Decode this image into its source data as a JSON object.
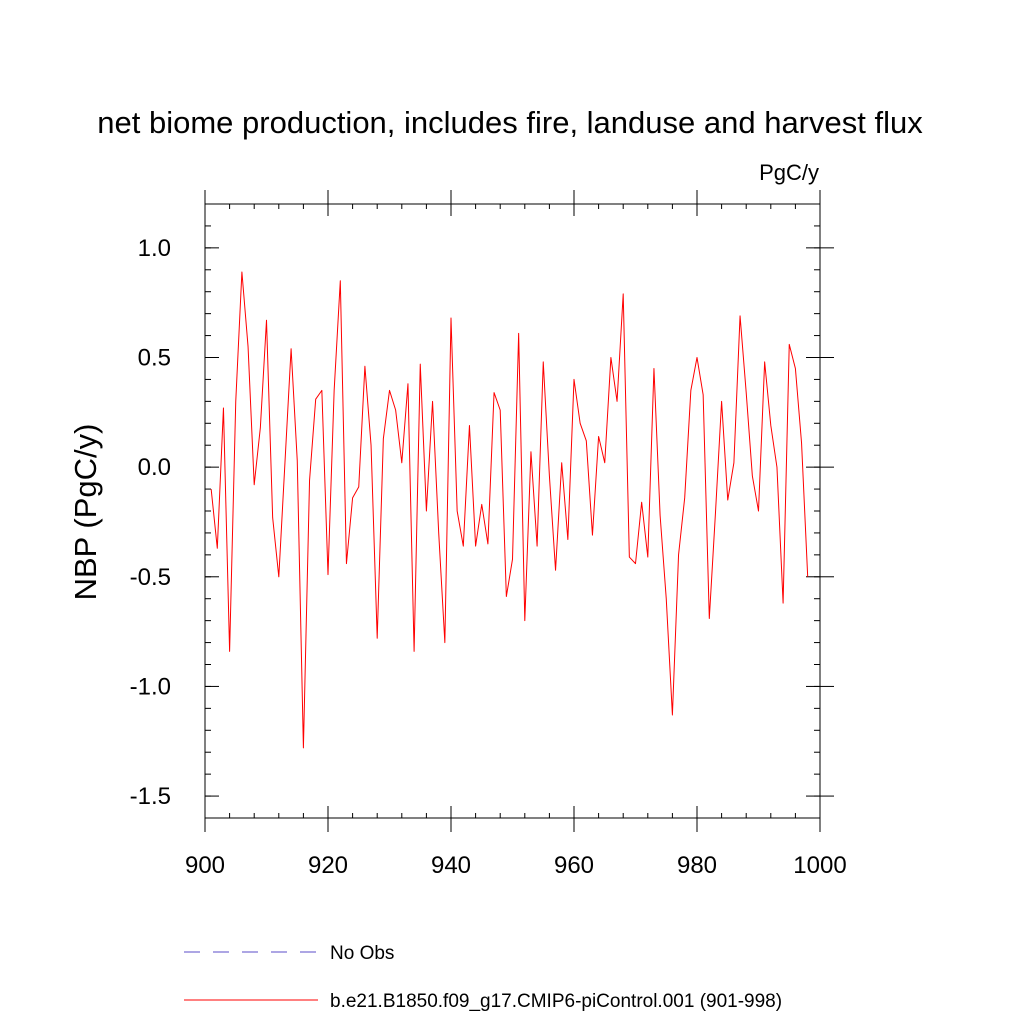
{
  "chart_data": {
    "type": "line",
    "title": "net biome production, includes fire, landuse and harvest flux",
    "units": "PgC/y",
    "ylabel": "NBP  (PgC/y)",
    "xlabel": "",
    "xlim": [
      900,
      1000
    ],
    "ylim": [
      -1.6,
      1.2
    ],
    "xticks": [
      900,
      920,
      940,
      960,
      980,
      1000
    ],
    "xtick_labels": [
      "900",
      "920",
      "940",
      "960",
      "980",
      "1000"
    ],
    "yticks": [
      -1.5,
      -1.0,
      -0.5,
      0.0,
      0.5,
      1.0
    ],
    "ytick_labels": [
      "-1.5",
      "-1.0",
      "-0.5",
      "0.0",
      "0.5",
      "1.0"
    ],
    "grid": false,
    "legend_position": "bottom",
    "legend": [
      {
        "label": "No Obs",
        "color": "#5b4ec8",
        "style": "dashed"
      },
      {
        "label": "b.e21.B1850.f09_g17.CMIP6-piControl.001 (901-998)",
        "color": "#ff0000",
        "style": "solid"
      }
    ],
    "series": [
      {
        "name": "b.e21.B1850.f09_g17.CMIP6-piControl.001 (901-998)",
        "color": "#ff0000",
        "x_start": 901,
        "x_step": 1,
        "values": [
          -0.1,
          -0.37,
          0.27,
          -0.84,
          0.3,
          0.89,
          0.55,
          -0.08,
          0.18,
          0.67,
          -0.23,
          -0.5,
          0.02,
          0.54,
          0.03,
          -1.28,
          -0.06,
          0.31,
          0.35,
          -0.49,
          0.35,
          0.85,
          -0.44,
          -0.14,
          -0.09,
          0.46,
          0.1,
          -0.78,
          0.13,
          0.35,
          0.26,
          0.02,
          0.38,
          -0.84,
          0.47,
          -0.2,
          0.3,
          -0.3,
          -0.8,
          0.68,
          -0.2,
          -0.36,
          0.19,
          -0.36,
          -0.17,
          -0.35,
          0.34,
          0.26,
          -0.59,
          -0.42,
          0.61,
          -0.7,
          0.07,
          -0.36,
          0.48,
          -0.04,
          -0.47,
          0.02,
          -0.33,
          0.4,
          0.2,
          0.12,
          -0.31,
          0.14,
          0.02,
          0.5,
          0.3,
          0.79,
          -0.41,
          -0.44,
          -0.16,
          -0.41,
          0.45,
          -0.22,
          -0.6,
          -1.13,
          -0.4,
          -0.14,
          0.35,
          0.5,
          0.33,
          -0.69,
          -0.21,
          0.3,
          -0.15,
          0.02,
          0.69,
          0.34,
          -0.04,
          -0.2,
          0.48,
          0.19,
          0.0,
          -0.62,
          0.56,
          0.45,
          0.11,
          -0.5
        ]
      }
    ]
  }
}
